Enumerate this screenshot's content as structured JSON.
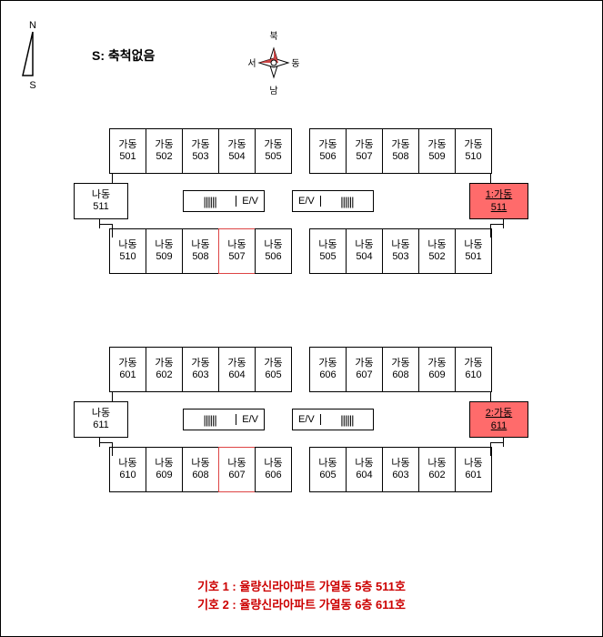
{
  "scale_label": "S:  축척없음",
  "compass": {
    "n": "북",
    "s": "남",
    "e": "동",
    "w": "서"
  },
  "north_indicator": {
    "top": "N",
    "bottom": "S"
  },
  "floors": [
    {
      "id": "floor5",
      "top_row": [
        {
          "dong": "가동",
          "num": "501"
        },
        {
          "dong": "가동",
          "num": "502"
        },
        {
          "dong": "가동",
          "num": "503"
        },
        {
          "dong": "가동",
          "num": "504"
        },
        {
          "dong": "가동",
          "num": "505"
        },
        {
          "dong": "가동",
          "num": "506"
        },
        {
          "dong": "가동",
          "num": "507"
        },
        {
          "dong": "가동",
          "num": "508"
        },
        {
          "dong": "가동",
          "num": "509"
        },
        {
          "dong": "가동",
          "num": "510"
        }
      ],
      "mid_left": {
        "dong": "나동",
        "num": "511"
      },
      "ev_left_hash": "||||||",
      "ev_left": "E/V",
      "ev_right": "E/V",
      "ev_right_hash": "||||||",
      "mid_right": {
        "label1": "1:가동",
        "label2": "511"
      },
      "bottom_row": [
        {
          "dong": "나동",
          "num": "510"
        },
        {
          "dong": "나동",
          "num": "509"
        },
        {
          "dong": "나동",
          "num": "508"
        },
        {
          "dong": "나동",
          "num": "507",
          "red": true
        },
        {
          "dong": "나동",
          "num": "506"
        },
        {
          "dong": "나동",
          "num": "505"
        },
        {
          "dong": "나동",
          "num": "504"
        },
        {
          "dong": "나동",
          "num": "503"
        },
        {
          "dong": "나동",
          "num": "502"
        },
        {
          "dong": "나동",
          "num": "501"
        }
      ]
    },
    {
      "id": "floor6",
      "top_row": [
        {
          "dong": "가동",
          "num": "601"
        },
        {
          "dong": "가동",
          "num": "602"
        },
        {
          "dong": "가동",
          "num": "603"
        },
        {
          "dong": "가동",
          "num": "604"
        },
        {
          "dong": "가동",
          "num": "605"
        },
        {
          "dong": "가동",
          "num": "606"
        },
        {
          "dong": "가동",
          "num": "607"
        },
        {
          "dong": "가동",
          "num": "608"
        },
        {
          "dong": "가동",
          "num": "609"
        },
        {
          "dong": "가동",
          "num": "610"
        }
      ],
      "mid_left": {
        "dong": "나동",
        "num": "611"
      },
      "ev_left_hash": "||||||",
      "ev_left": "E/V",
      "ev_right": "E/V",
      "ev_right_hash": "||||||",
      "mid_right": {
        "label1": "2:가동",
        "label2": "611"
      },
      "bottom_row": [
        {
          "dong": "나동",
          "num": "610"
        },
        {
          "dong": "나동",
          "num": "609"
        },
        {
          "dong": "나동",
          "num": "608"
        },
        {
          "dong": "나동",
          "num": "607",
          "red": true
        },
        {
          "dong": "나동",
          "num": "606"
        },
        {
          "dong": "나동",
          "num": "605"
        },
        {
          "dong": "나동",
          "num": "604"
        },
        {
          "dong": "나동",
          "num": "603"
        },
        {
          "dong": "나동",
          "num": "602"
        },
        {
          "dong": "나동",
          "num": "601"
        }
      ]
    }
  ],
  "legend": {
    "line1": "기호 1 : 율량신라아파트 가열동 5층 511호",
    "line2": "기호 2 : 율량신라아파트 가열동 6층 611호"
  },
  "colors": {
    "highlight_bg": "#ff6b6b",
    "legend_text": "#cc0000",
    "border": "#000000"
  }
}
